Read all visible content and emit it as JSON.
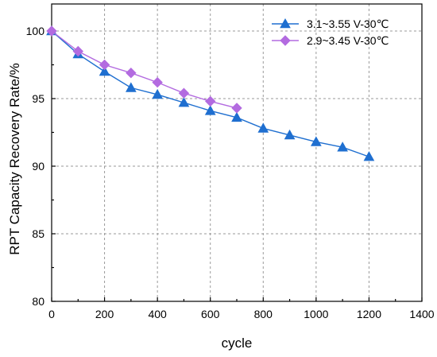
{
  "chart_data": {
    "type": "line",
    "xlabel": "cycle",
    "ylabel": "RPT Capacity Recovery Rate/%",
    "xlim": [
      0,
      1400
    ],
    "ylim": [
      80,
      102
    ],
    "xticks": [
      0,
      200,
      400,
      600,
      800,
      1000,
      1200,
      1400
    ],
    "yticks": [
      80,
      85,
      90,
      95,
      100
    ],
    "grid": true,
    "legend_position": "top-right",
    "series": [
      {
        "name": "3.1~3.55 V-30℃",
        "color": "#1f6fd0",
        "marker": "triangle",
        "x": [
          0,
          100,
          200,
          300,
          400,
          500,
          600,
          700,
          800,
          900,
          1000,
          1100,
          1200
        ],
        "y": [
          100.0,
          98.3,
          97.0,
          95.8,
          95.3,
          94.7,
          94.1,
          93.6,
          92.8,
          92.3,
          91.8,
          91.4,
          90.7
        ]
      },
      {
        "name": "2.9~3.45 V-30℃",
        "color": "#b36be0",
        "marker": "diamond",
        "x": [
          0,
          100,
          200,
          300,
          400,
          500,
          600,
          700
        ],
        "y": [
          100.0,
          98.5,
          97.5,
          96.9,
          96.2,
          95.4,
          94.8,
          94.3
        ]
      }
    ]
  }
}
